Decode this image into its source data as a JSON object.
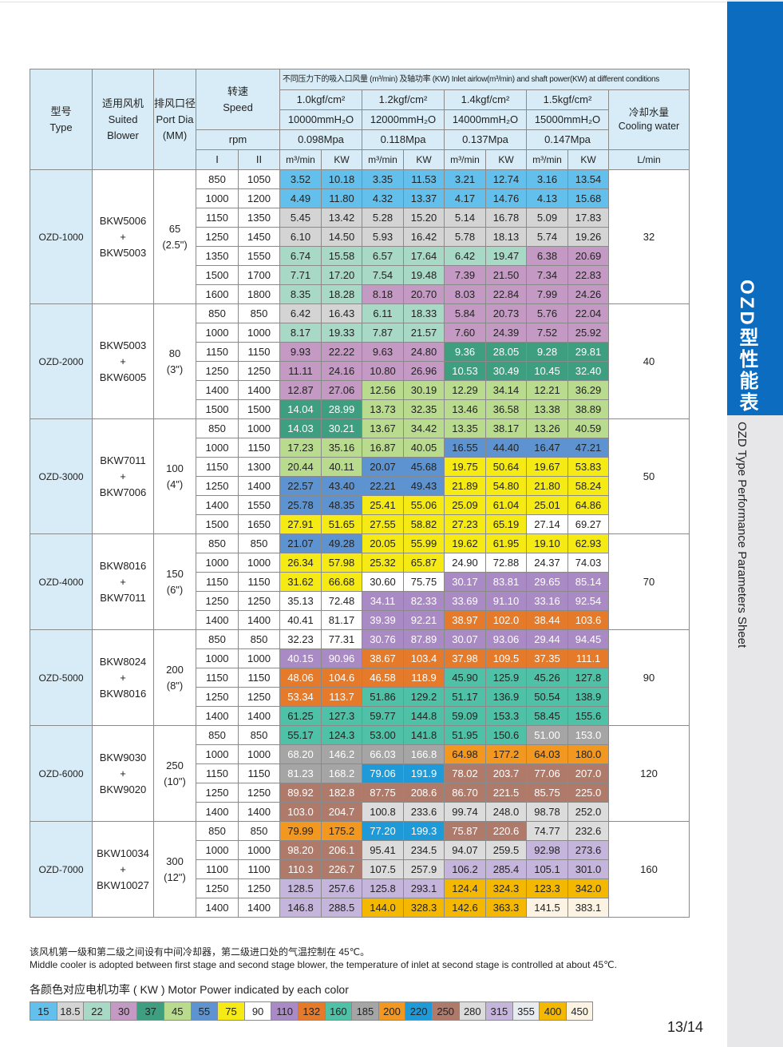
{
  "sidebar": {
    "title_zh": "OZD型性能表",
    "title_en": "OZD Type Performance Parameters Sheet"
  },
  "header": {
    "type_zh": "型号",
    "type_en": "Type",
    "blower_zh": "适用风机",
    "blower_en": "Suited Blower",
    "port_zh": "排风口径",
    "port_en": "Port Dia (MM)",
    "speed_zh": "转速",
    "speed_en": "Speed",
    "rpm": "rpm",
    "stage1": "I",
    "stage2": "II",
    "conditions": "不同压力下的吸入口风量 (m³/min) 及轴功率 (KW) Inlet airlow(m³/min) and shaft power(KW) at different conditions",
    "pressures": [
      "1.0kgf/cm²",
      "1.2kgf/cm²",
      "1.4kgf/cm²",
      "1.5kgf/cm²"
    ],
    "water_columns": [
      "10000mmH₂O",
      "12000mmH₂O",
      "14000mmH₂O",
      "15000mmH₂O"
    ],
    "mpa": [
      "0.098Mpa",
      "0.118Mpa",
      "0.137Mpa",
      "0.147Mpa"
    ],
    "flow_unit": "m³/min",
    "power_unit": "KW",
    "cooling_zh": "冷却水量",
    "cooling_en": "Cooling water",
    "cooling_unit": "L/min"
  },
  "models": [
    {
      "type": "OZD-1000",
      "blower1": "BKW5006",
      "plus": "+",
      "blower2": "BKW5003",
      "port": "65",
      "port_in": "(2.5\")",
      "cooling": "32",
      "rows": [
        [
          "850",
          "1050",
          "3.52",
          "10.18",
          "3.35",
          "11.53",
          "3.21",
          "12.74",
          "3.16",
          "13.54"
        ],
        [
          "1000",
          "1200",
          "4.49",
          "11.80",
          "4.32",
          "13.37",
          "4.17",
          "14.76",
          "4.13",
          "15.68"
        ],
        [
          "1150",
          "1350",
          "5.45",
          "13.42",
          "5.28",
          "15.20",
          "5.14",
          "16.78",
          "5.09",
          "17.83"
        ],
        [
          "1250",
          "1450",
          "6.10",
          "14.50",
          "5.93",
          "16.42",
          "5.78",
          "18.13",
          "5.74",
          "19.26"
        ],
        [
          "1350",
          "1550",
          "6.74",
          "15.58",
          "6.57",
          "17.64",
          "6.42",
          "19.47",
          "6.38",
          "20.69"
        ],
        [
          "1500",
          "1700",
          "7.71",
          "17.20",
          "7.54",
          "19.48",
          "7.39",
          "21.50",
          "7.34",
          "22.83"
        ],
        [
          "1600",
          "1800",
          "8.35",
          "18.28",
          "8.18",
          "20.70",
          "8.03",
          "22.84",
          "7.99",
          "24.26"
        ]
      ]
    },
    {
      "type": "OZD-2000",
      "blower1": "BKW5003",
      "plus": "+",
      "blower2": "BKW6005",
      "port": "80",
      "port_in": "(3\")",
      "cooling": "40",
      "rows": [
        [
          "850",
          "850",
          "6.42",
          "16.43",
          "6.11",
          "18.33",
          "5.84",
          "20.73",
          "5.76",
          "22.04"
        ],
        [
          "1000",
          "1000",
          "8.17",
          "19.33",
          "7.87",
          "21.57",
          "7.60",
          "24.39",
          "7.52",
          "25.92"
        ],
        [
          "1150",
          "1150",
          "9.93",
          "22.22",
          "9.63",
          "24.80",
          "9.36",
          "28.05",
          "9.28",
          "29.81"
        ],
        [
          "1250",
          "1250",
          "11.11",
          "24.16",
          "10.80",
          "26.96",
          "10.53",
          "30.49",
          "10.45",
          "32.40"
        ],
        [
          "1400",
          "1400",
          "12.87",
          "27.06",
          "12.56",
          "30.19",
          "12.29",
          "34.14",
          "12.21",
          "36.29"
        ],
        [
          "1500",
          "1500",
          "14.04",
          "28.99",
          "13.73",
          "32.35",
          "13.46",
          "36.58",
          "13.38",
          "38.89"
        ]
      ]
    },
    {
      "type": "OZD-3000",
      "blower1": "BKW7011",
      "plus": "+",
      "blower2": "BKW7006",
      "port": "100",
      "port_in": "(4\")",
      "cooling": "50",
      "rows": [
        [
          "850",
          "1000",
          "14.03",
          "30.21",
          "13.67",
          "34.42",
          "13.35",
          "38.17",
          "13.26",
          "40.59"
        ],
        [
          "1000",
          "1150",
          "17.23",
          "35.16",
          "16.87",
          "40.05",
          "16.55",
          "44.40",
          "16.47",
          "47.21"
        ],
        [
          "1150",
          "1300",
          "20.44",
          "40.11",
          "20.07",
          "45.68",
          "19.75",
          "50.64",
          "19.67",
          "53.83"
        ],
        [
          "1250",
          "1400",
          "22.57",
          "43.40",
          "22.21",
          "49.43",
          "21.89",
          "54.80",
          "21.80",
          "58.24"
        ],
        [
          "1400",
          "1550",
          "25.78",
          "48.35",
          "25.41",
          "55.06",
          "25.09",
          "61.04",
          "25.01",
          "64.86"
        ],
        [
          "1500",
          "1650",
          "27.91",
          "51.65",
          "27.55",
          "58.82",
          "27.23",
          "65.19",
          "27.14",
          "69.27"
        ]
      ]
    },
    {
      "type": "OZD-4000",
      "blower1": "BKW8016",
      "plus": "+",
      "blower2": "BKW7011",
      "port": "150",
      "port_in": "(6\")",
      "cooling": "70",
      "rows": [
        [
          "850",
          "850",
          "21.07",
          "49.28",
          "20.05",
          "55.99",
          "19.62",
          "61.95",
          "19.10",
          "62.93"
        ],
        [
          "1000",
          "1000",
          "26.34",
          "57.98",
          "25.32",
          "65.87",
          "24.90",
          "72.88",
          "24.37",
          "74.03"
        ],
        [
          "1150",
          "1150",
          "31.62",
          "66.68",
          "30.60",
          "75.75",
          "30.17",
          "83.81",
          "29.65",
          "85.14"
        ],
        [
          "1250",
          "1250",
          "35.13",
          "72.48",
          "34.11",
          "82.33",
          "33.69",
          "91.10",
          "33.16",
          "92.54"
        ],
        [
          "1400",
          "1400",
          "40.41",
          "81.17",
          "39.39",
          "92.21",
          "38.97",
          "102.0",
          "38.44",
          "103.6"
        ]
      ]
    },
    {
      "type": "OZD-5000",
      "blower1": "BKW8024",
      "plus": "+",
      "blower2": "BKW8016",
      "port": "200",
      "port_in": "(8\")",
      "cooling": "90",
      "rows": [
        [
          "850",
          "850",
          "32.23",
          "77.31",
          "30.76",
          "87.89",
          "30.07",
          "93.06",
          "29.44",
          "94.45"
        ],
        [
          "1000",
          "1000",
          "40.15",
          "90.96",
          "38.67",
          "103.4",
          "37.98",
          "109.5",
          "37.35",
          "111.1"
        ],
        [
          "1150",
          "1150",
          "48.06",
          "104.6",
          "46.58",
          "118.9",
          "45.90",
          "125.9",
          "45.26",
          "127.8"
        ],
        [
          "1250",
          "1250",
          "53.34",
          "113.7",
          "51.86",
          "129.2",
          "51.17",
          "136.9",
          "50.54",
          "138.9"
        ],
        [
          "1400",
          "1400",
          "61.25",
          "127.3",
          "59.77",
          "144.8",
          "59.09",
          "153.3",
          "58.45",
          "155.6"
        ]
      ]
    },
    {
      "type": "OZD-6000",
      "blower1": "BKW9030",
      "plus": "+",
      "blower2": "BKW9020",
      "port": "250",
      "port_in": "(10\")",
      "cooling": "120",
      "rows": [
        [
          "850",
          "850",
          "55.17",
          "124.3",
          "53.00",
          "141.8",
          "51.95",
          "150.6",
          "51.00",
          "153.0"
        ],
        [
          "1000",
          "1000",
          "68.20",
          "146.2",
          "66.03",
          "166.8",
          "64.98",
          "177.2",
          "64.03",
          "180.0"
        ],
        [
          "1150",
          "1150",
          "81.23",
          "168.2",
          "79.06",
          "191.9",
          "78.02",
          "203.7",
          "77.06",
          "207.0"
        ],
        [
          "1250",
          "1250",
          "89.92",
          "182.8",
          "87.75",
          "208.6",
          "86.70",
          "221.5",
          "85.75",
          "225.0"
        ],
        [
          "1400",
          "1400",
          "103.0",
          "204.7",
          "100.8",
          "233.6",
          "99.74",
          "248.0",
          "98.78",
          "252.0"
        ]
      ]
    },
    {
      "type": "OZD-7000",
      "blower1": "BKW10034",
      "plus": "+",
      "blower2": "BKW10027",
      "port": "300",
      "port_in": "(12\")",
      "cooling": "160",
      "rows": [
        [
          "850",
          "850",
          "79.99",
          "175.2",
          "77.20",
          "199.3",
          "75.87",
          "220.6",
          "74.77",
          "232.6"
        ],
        [
          "1000",
          "1000",
          "98.20",
          "206.1",
          "95.41",
          "234.5",
          "94.07",
          "259.5",
          "92.98",
          "273.6"
        ],
        [
          "1100",
          "1100",
          "110.3",
          "226.7",
          "107.5",
          "257.9",
          "106.2",
          "285.4",
          "105.1",
          "301.0"
        ],
        [
          "1250",
          "1250",
          "128.5",
          "257.6",
          "125.8",
          "293.1",
          "124.4",
          "324.3",
          "123.3",
          "342.0"
        ],
        [
          "1400",
          "1400",
          "146.8",
          "288.5",
          "144.0",
          "328.3",
          "142.6",
          "363.3",
          "141.5",
          "383.1"
        ]
      ]
    }
  ],
  "notes": {
    "zh": "该风机第一级和第二级之间设有中间冷却器，第二级进口处的气温控制在 45℃。",
    "en": "Middle cooler is adopted between first stage and second stage blower, the temperature of inlet at second stage is controlled at about 45℃."
  },
  "legend": {
    "title": "各颜色对应电机功率 ( KW ) Motor Power indicated by each color",
    "items": [
      {
        "label": "15",
        "color": "#63c0ec"
      },
      {
        "label": "18.5",
        "color": "#d4d4d4"
      },
      {
        "label": "22",
        "color": "#a8d8c6"
      },
      {
        "label": "30",
        "color": "#c49ac4"
      },
      {
        "label": "37",
        "color": "#3d9e80"
      },
      {
        "label": "45",
        "color": "#b9db8d"
      },
      {
        "label": "55",
        "color": "#5d93d0"
      },
      {
        "label": "75",
        "color": "#f5ea14"
      },
      {
        "label": "90",
        "color": "#ffffff"
      },
      {
        "label": "110",
        "color": "#a98ac4"
      },
      {
        "label": "132",
        "color": "#e57a2a"
      },
      {
        "label": "160",
        "color": "#4ec1a6"
      },
      {
        "label": "185",
        "color": "#a5a5a5"
      },
      {
        "label": "200",
        "color": "#f29720"
      },
      {
        "label": "220",
        "color": "#1f9ad8"
      },
      {
        "label": "250",
        "color": "#b07a6a"
      },
      {
        "label": "280",
        "color": "#dcdcdc"
      },
      {
        "label": "315",
        "color": "#c5b4dc"
      },
      {
        "label": "355",
        "color": "#e6ecf0"
      },
      {
        "label": "400",
        "color": "#f5b800"
      },
      {
        "label": "450",
        "color": "#fdf3e2"
      }
    ]
  },
  "page_number": "13/14"
}
